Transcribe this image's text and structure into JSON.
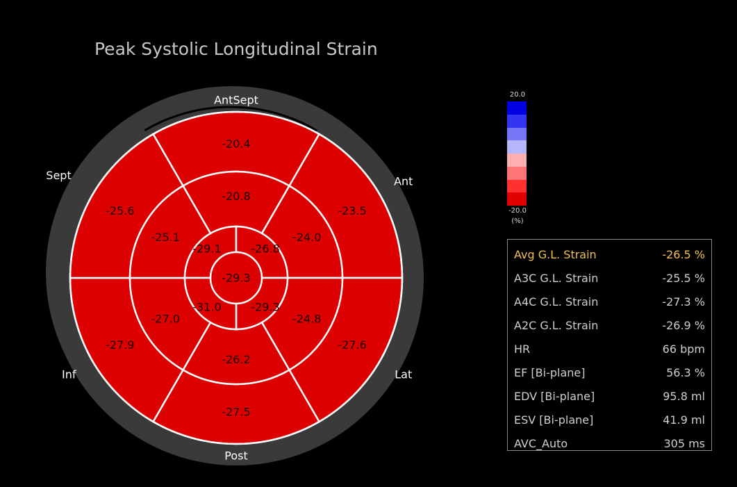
{
  "chart_data": {
    "type": "bullseye",
    "title": "Peak Systolic Longitudinal Strain",
    "region_labels": {
      "top": "AntSept",
      "upper_left": "Sept",
      "upper_right": "Ant",
      "lower_left": "Inf",
      "lower_right": "Lat",
      "bottom": "Post"
    },
    "segments": {
      "basal": [
        {
          "region": "AntSept",
          "value": -20.4
        },
        {
          "region": "Ant",
          "value": -23.5
        },
        {
          "region": "Lat",
          "value": -27.6
        },
        {
          "region": "Post",
          "value": -27.5
        },
        {
          "region": "Inf",
          "value": -27.9
        },
        {
          "region": "Sept",
          "value": -25.6
        }
      ],
      "mid": [
        {
          "region": "AntSept",
          "value": -20.8
        },
        {
          "region": "Ant",
          "value": -24.0
        },
        {
          "region": "Lat",
          "value": -24.8
        },
        {
          "region": "Post",
          "value": -26.2
        },
        {
          "region": "Inf",
          "value": -27.0
        },
        {
          "region": "Sept",
          "value": -25.1
        }
      ],
      "apical": [
        {
          "position": "upper-left",
          "value": -29.1
        },
        {
          "position": "upper-right",
          "value": -26.8
        },
        {
          "position": "lower-right",
          "value": -29.3
        },
        {
          "position": "lower-left",
          "value": -31.0
        }
      ],
      "apex": -29.3
    },
    "segment_color": "#dd0000",
    "colorbar": {
      "max_label": "20.0",
      "min_label": "-20.0",
      "unit_label": "(%)",
      "colors": [
        "#0000e0",
        "#3434f4",
        "#7676f8",
        "#b6b6fb",
        "#ffb0b0",
        "#ff7474",
        "#ff3030",
        "#e00000"
      ]
    }
  },
  "stats": [
    {
      "label": "Avg G.L. Strain",
      "value": "-26.5 %",
      "highlight": true
    },
    {
      "label": "A3C G.L. Strain",
      "value": "-25.5 %"
    },
    {
      "label": "A4C G.L. Strain",
      "value": "-27.3 %"
    },
    {
      "label": "A2C G.L. Strain",
      "value": "-26.9 %"
    },
    {
      "label": "HR",
      "value": "66 bpm"
    },
    {
      "label": "EF [Bi-plane]",
      "value": "56.3 %"
    },
    {
      "label": "EDV [Bi-plane]",
      "value": "95.8 ml"
    },
    {
      "label": "ESV [Bi-plane]",
      "value": "41.9 ml"
    },
    {
      "label": "AVC_Auto",
      "value": "305 ms"
    }
  ],
  "colors": {
    "highlight": "#f2c14e",
    "ring": "#3a3a3a",
    "segment_line": "#ffffff"
  }
}
